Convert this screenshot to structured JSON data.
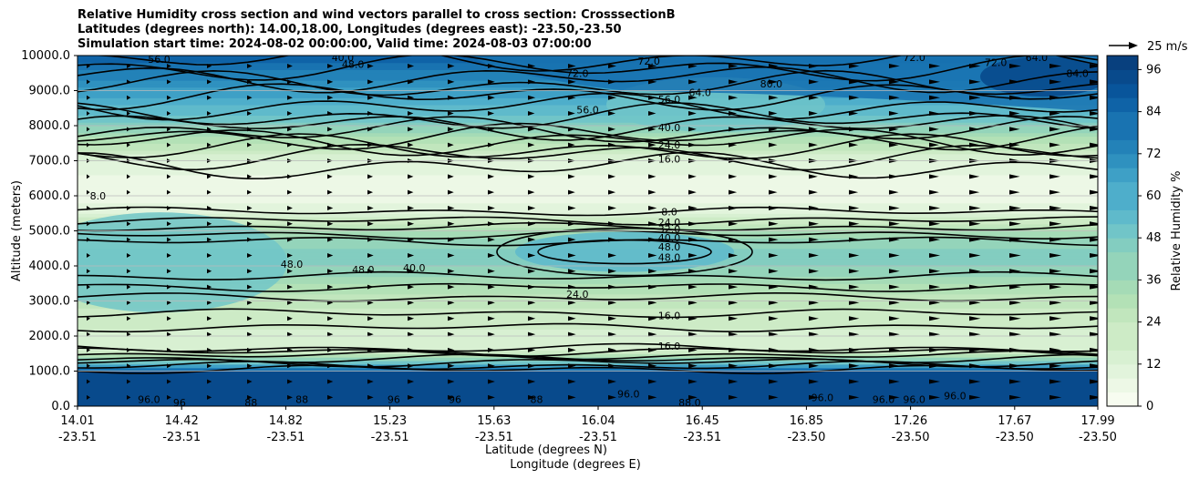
{
  "chart_data": {
    "type": "heatmap",
    "title_lines": [
      "Relative Humidity cross section and wind vectors parallel to cross section: CrosssectionB",
      "Latitudes (degrees north): 14.00,18.00, Longitudes (degrees east): -23.50,-23.50",
      "Simulation start time: 2024-08-02 00:00:00, Valid time: 2024-08-03 07:00:00"
    ],
    "ylabel": "Altitude (meters)",
    "xlabel_lines": [
      "Latitude (degrees N)",
      "Longitude (degrees E)"
    ],
    "ylim": [
      0,
      10000
    ],
    "y_ticks": [
      "0.0",
      "1000.0",
      "2000.0",
      "3000.0",
      "4000.0",
      "5000.0",
      "6000.0",
      "7000.0",
      "8000.0",
      "9000.0",
      "10000.0"
    ],
    "x_ticks": [
      {
        "lat": "14.01",
        "lon": "-23.51"
      },
      {
        "lat": "14.42",
        "lon": "-23.51"
      },
      {
        "lat": "14.82",
        "lon": "-23.51"
      },
      {
        "lat": "15.23",
        "lon": "-23.51"
      },
      {
        "lat": "15.63",
        "lon": "-23.51"
      },
      {
        "lat": "16.04",
        "lon": "-23.51"
      },
      {
        "lat": "16.45",
        "lon": "-23.51"
      },
      {
        "lat": "16.85",
        "lon": "-23.50"
      },
      {
        "lat": "17.26",
        "lon": "-23.50"
      },
      {
        "lat": "17.67",
        "lon": "-23.50"
      },
      {
        "lat": "17.99",
        "lon": "-23.50"
      }
    ],
    "colorbar": {
      "label": "Relative Humidity %",
      "ticks": [
        "0",
        "12",
        "24",
        "36",
        "48",
        "60",
        "72",
        "84",
        "96"
      ],
      "range": [
        0,
        100
      ],
      "levels": 25,
      "colors": [
        "#f7fcf0",
        "#edf8e6",
        "#e2f4dc",
        "#d8f0d2",
        "#cdebc6",
        "#c1e6bd",
        "#b3e1b6",
        "#a5dbb6",
        "#94d4ba",
        "#83cdc0",
        "#71c5c8",
        "#5fbacb",
        "#4eaecb",
        "#3ea0c6",
        "#2f91bf",
        "#2382b8",
        "#1973b1",
        "#0f63a7",
        "#08559b",
        "#084a8c",
        "#08407e"
      ]
    },
    "vector_key": "25 m/s",
    "humidity_profile": [
      {
        "alt": 0,
        "rh": 96
      },
      {
        "alt": 600,
        "rh": 94
      },
      {
        "alt": 1000,
        "rh": 88
      },
      {
        "alt": 1300,
        "rh": 45
      },
      {
        "alt": 1600,
        "rh": 17
      },
      {
        "alt": 2000,
        "rh": 16
      },
      {
        "alt": 3000,
        "rh": 24
      },
      {
        "alt": 4300,
        "rh": 48
      },
      {
        "alt": 5000,
        "rh": 32
      },
      {
        "alt": 5600,
        "rh": 8
      },
      {
        "alt": 6500,
        "rh": 6
      },
      {
        "alt": 7000,
        "rh": 12
      },
      {
        "alt": 7600,
        "rh": 30
      },
      {
        "alt": 8200,
        "rh": 50
      },
      {
        "alt": 9000,
        "rh": 66
      },
      {
        "alt": 10000,
        "rh": 86
      }
    ],
    "contour_labels": [
      {
        "x": 0.58,
        "alt": 5550,
        "text": "8.0"
      },
      {
        "x": 0.58,
        "alt": 5250,
        "text": "24.0"
      },
      {
        "x": 0.58,
        "alt": 5050,
        "text": "32.0"
      },
      {
        "x": 0.58,
        "alt": 4800,
        "text": "40.0"
      },
      {
        "x": 0.58,
        "alt": 4550,
        "text": "48.0"
      },
      {
        "x": 0.58,
        "alt": 4250,
        "text": "48.0"
      },
      {
        "x": 0.49,
        "alt": 3200,
        "text": "24.0"
      },
      {
        "x": 0.58,
        "alt": 2580,
        "text": "16.0"
      },
      {
        "x": 0.58,
        "alt": 1720,
        "text": "16.0"
      },
      {
        "x": 0.58,
        "alt": 7050,
        "text": "16.0"
      },
      {
        "x": 0.58,
        "alt": 7450,
        "text": "24.0"
      },
      {
        "x": 0.58,
        "alt": 7950,
        "text": "40.0"
      },
      {
        "x": 0.5,
        "alt": 8450,
        "text": "56.0"
      },
      {
        "x": 0.58,
        "alt": 8750,
        "text": "56.0"
      },
      {
        "x": 0.61,
        "alt": 8950,
        "text": "64.0"
      },
      {
        "x": 0.49,
        "alt": 9500,
        "text": "72.0"
      },
      {
        "x": 0.56,
        "alt": 9850,
        "text": "72.0"
      },
      {
        "x": 0.68,
        "alt": 9200,
        "text": "80.0"
      },
      {
        "x": 0.08,
        "alt": 9900,
        "text": "56.0"
      },
      {
        "x": 0.26,
        "alt": 9950,
        "text": "40.0"
      },
      {
        "x": 0.27,
        "alt": 9750,
        "text": "48.0"
      },
      {
        "x": 0.02,
        "alt": 6000,
        "text": "8.0"
      },
      {
        "x": 0.21,
        "alt": 4050,
        "text": "48.0"
      },
      {
        "x": 0.28,
        "alt": 3900,
        "text": "48.0"
      },
      {
        "x": 0.33,
        "alt": 3950,
        "text": "40.0"
      },
      {
        "x": 0.07,
        "alt": 200,
        "text": "96.0"
      },
      {
        "x": 0.1,
        "alt": 100,
        "text": "96"
      },
      {
        "x": 0.17,
        "alt": 100,
        "text": "88"
      },
      {
        "x": 0.22,
        "alt": 200,
        "text": "88"
      },
      {
        "x": 0.31,
        "alt": 200,
        "text": "96"
      },
      {
        "x": 0.37,
        "alt": 200,
        "text": "96"
      },
      {
        "x": 0.45,
        "alt": 200,
        "text": "88"
      },
      {
        "x": 0.54,
        "alt": 350,
        "text": "96.0"
      },
      {
        "x": 0.6,
        "alt": 100,
        "text": "88.0"
      },
      {
        "x": 0.73,
        "alt": 250,
        "text": "96.0"
      },
      {
        "x": 0.79,
        "alt": 200,
        "text": "96.0"
      },
      {
        "x": 0.82,
        "alt": 200,
        "text": "96.0"
      },
      {
        "x": 0.86,
        "alt": 300,
        "text": "96.0"
      },
      {
        "x": 0.98,
        "alt": 9500,
        "text": "84.0"
      },
      {
        "x": 0.9,
        "alt": 9800,
        "text": "72.0"
      },
      {
        "x": 0.82,
        "alt": 9950,
        "text": "72.0"
      },
      {
        "x": 0.94,
        "alt": 9950,
        "text": "64.0"
      }
    ]
  }
}
